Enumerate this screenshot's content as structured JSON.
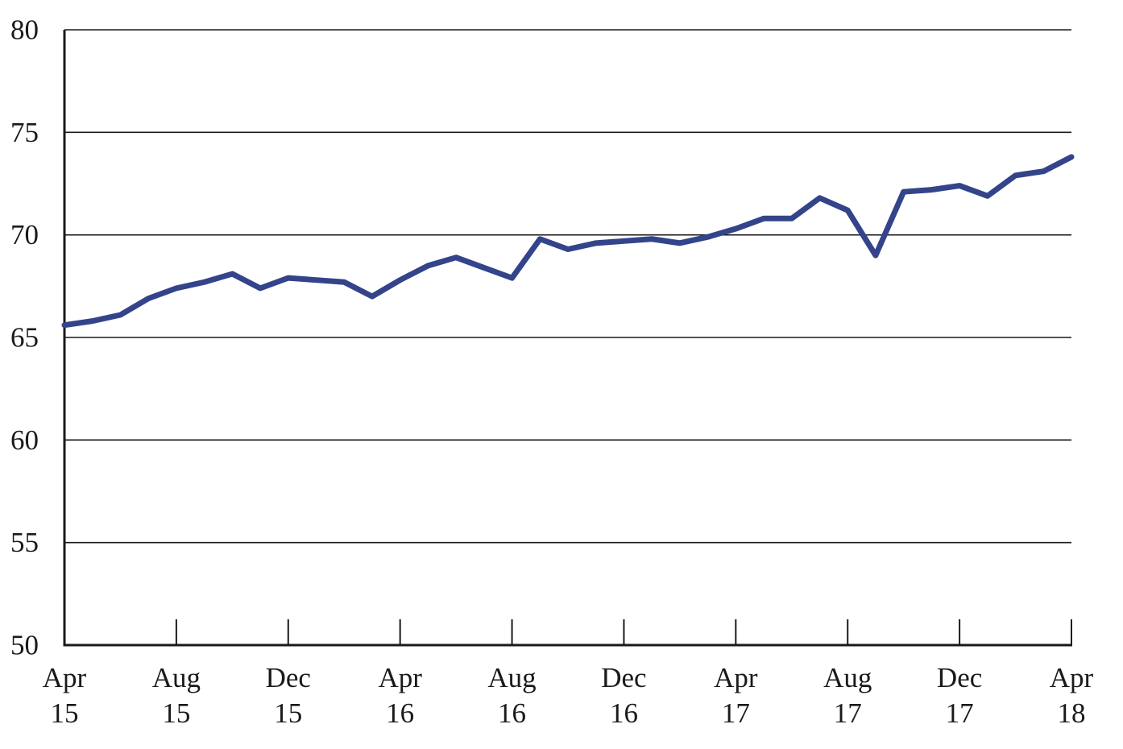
{
  "chart_data": {
    "type": "line",
    "title": "",
    "xlabel": "",
    "ylabel": "",
    "ylim": [
      50,
      80
    ],
    "yticks": [
      "50",
      "55",
      "60",
      "65",
      "70",
      "75",
      "80"
    ],
    "xlim": [
      "2015-04",
      "2018-04"
    ],
    "xticks": [
      {
        "month": "2015-04",
        "line1": "Apr",
        "line2": "15"
      },
      {
        "month": "2015-08",
        "line1": "Aug",
        "line2": "15"
      },
      {
        "month": "2015-12",
        "line1": "Dec",
        "line2": "15"
      },
      {
        "month": "2016-04",
        "line1": "Apr",
        "line2": "16"
      },
      {
        "month": "2016-08",
        "line1": "Aug",
        "line2": "16"
      },
      {
        "month": "2016-12",
        "line1": "Dec",
        "line2": "16"
      },
      {
        "month": "2017-04",
        "line1": "Apr",
        "line2": "17"
      },
      {
        "month": "2017-08",
        "line1": "Aug",
        "line2": "17"
      },
      {
        "month": "2017-12",
        "line1": "Dec",
        "line2": "17"
      },
      {
        "month": "2018-04",
        "line1": "Apr",
        "line2": "18"
      }
    ],
    "grid": true,
    "legend": "none",
    "series": [
      {
        "color": "#34448a",
        "points": [
          {
            "x": "2015-04",
            "y": 65.6
          },
          {
            "x": "2015-05",
            "y": 65.8
          },
          {
            "x": "2015-06",
            "y": 66.1
          },
          {
            "x": "2015-07",
            "y": 66.9
          },
          {
            "x": "2015-08",
            "y": 67.4
          },
          {
            "x": "2015-09",
            "y": 67.7
          },
          {
            "x": "2015-10",
            "y": 68.1
          },
          {
            "x": "2015-11",
            "y": 67.4
          },
          {
            "x": "2015-12",
            "y": 67.9
          },
          {
            "x": "2016-01",
            "y": 67.8
          },
          {
            "x": "2016-02",
            "y": 67.7
          },
          {
            "x": "2016-03",
            "y": 67.0
          },
          {
            "x": "2016-04",
            "y": 67.8
          },
          {
            "x": "2016-05",
            "y": 68.5
          },
          {
            "x": "2016-06",
            "y": 68.9
          },
          {
            "x": "2016-07",
            "y": 68.4
          },
          {
            "x": "2016-08",
            "y": 67.9
          },
          {
            "x": "2016-09",
            "y": 69.8
          },
          {
            "x": "2016-10",
            "y": 69.3
          },
          {
            "x": "2016-11",
            "y": 69.6
          },
          {
            "x": "2016-12",
            "y": 69.7
          },
          {
            "x": "2017-01",
            "y": 69.8
          },
          {
            "x": "2017-02",
            "y": 69.6
          },
          {
            "x": "2017-03",
            "y": 69.9
          },
          {
            "x": "2017-04",
            "y": 70.3
          },
          {
            "x": "2017-05",
            "y": 70.8
          },
          {
            "x": "2017-06",
            "y": 70.8
          },
          {
            "x": "2017-07",
            "y": 71.8
          },
          {
            "x": "2017-08",
            "y": 71.2
          },
          {
            "x": "2017-09",
            "y": 69.0
          },
          {
            "x": "2017-10",
            "y": 72.1
          },
          {
            "x": "2017-11",
            "y": 72.2
          },
          {
            "x": "2017-12",
            "y": 72.4
          },
          {
            "x": "2018-01",
            "y": 71.9
          },
          {
            "x": "2018-02",
            "y": 72.9
          },
          {
            "x": "2018-03",
            "y": 73.1
          },
          {
            "x": "2018-04",
            "y": 73.8
          }
        ]
      }
    ]
  }
}
